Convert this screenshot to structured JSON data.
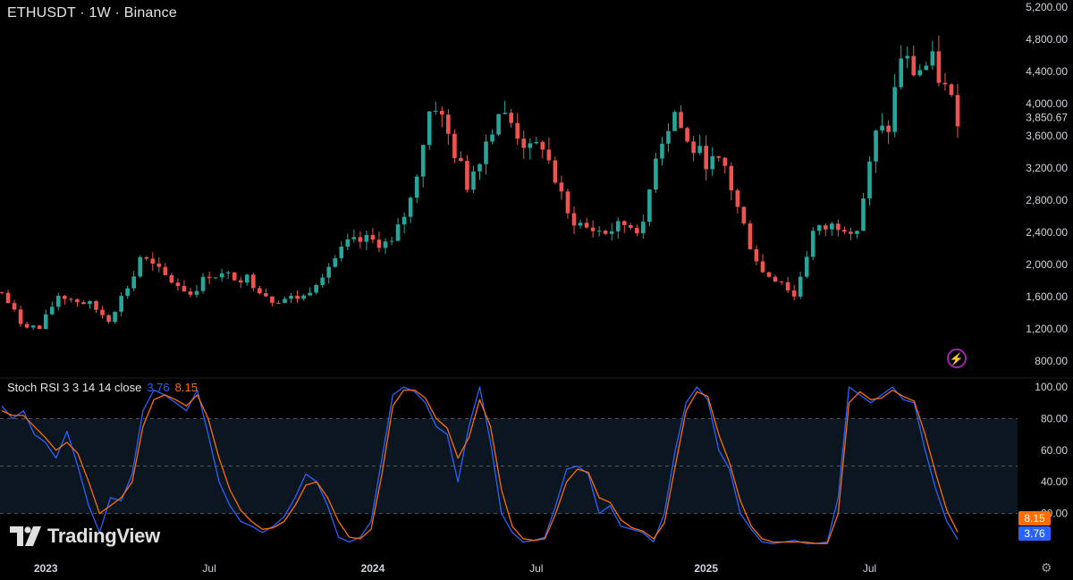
{
  "header": {
    "title": "ETHUSDT · 1W · Binance"
  },
  "indicator": {
    "label": "Stoch RSI 3 3 14 14 close",
    "k_value": "3.76",
    "d_value": "8.15"
  },
  "branding": {
    "logo_text": "TradingView"
  },
  "icons": {
    "alert": "lightning-icon",
    "settings": "gear-icon"
  },
  "colors": {
    "up": "#26a69a",
    "down": "#ef5350",
    "k_line": "#2962ff",
    "d_line": "#ff6d00",
    "band_fill": "#0b1620"
  },
  "chart_data": [
    {
      "type": "candlestick",
      "title": "ETHUSDT · 1W · Binance",
      "y_ticks": [
        "5,200.00",
        "4,800.00",
        "4,400.00",
        "4,000.00",
        "3,600.00",
        "3,200.00",
        "2,800.00",
        "2,400.00",
        "2,000.00",
        "1,600.00",
        "1,200.00",
        "800.00"
      ],
      "last_price_label": "3,850.67",
      "x_ticks": [
        "2023",
        "Jul",
        "2024",
        "Jul",
        "2025",
        "Jul"
      ],
      "close_path": [
        [
          "2022-11-14",
          1650
        ],
        [
          "2022-12-05",
          1280
        ],
        [
          "2022-12-26",
          1200
        ],
        [
          "2023-01-16",
          1620
        ],
        [
          "2023-02-06",
          1550
        ],
        [
          "2023-02-20",
          1500
        ],
        [
          "2023-03-13",
          1320
        ],
        [
          "2023-04-10",
          1860
        ],
        [
          "2023-04-17",
          2100
        ],
        [
          "2023-05-15",
          1850
        ],
        [
          "2023-06-12",
          1640
        ],
        [
          "2023-07-03",
          1880
        ],
        [
          "2023-08-14",
          1830
        ],
        [
          "2023-09-11",
          1560
        ],
        [
          "2023-10-16",
          1600
        ],
        [
          "2023-11-06",
          1900
        ],
        [
          "2023-12-04",
          2250
        ],
        [
          "2023-12-25",
          2300
        ],
        [
          "2024-01-22",
          2250
        ],
        [
          "2024-02-12",
          2800
        ],
        [
          "2024-03-04",
          3900
        ],
        [
          "2024-03-11",
          4000
        ],
        [
          "2024-03-25",
          3600
        ],
        [
          "2024-04-15",
          3000
        ],
        [
          "2024-05-20",
          3900
        ],
        [
          "2024-06-03",
          3750
        ],
        [
          "2024-06-24",
          3400
        ],
        [
          "2024-07-08",
          3500
        ],
        [
          "2024-08-05",
          2600
        ],
        [
          "2024-08-26",
          2450
        ],
        [
          "2024-09-16",
          2400
        ],
        [
          "2024-10-07",
          2500
        ],
        [
          "2024-10-28",
          2450
        ],
        [
          "2024-11-11",
          3400
        ],
        [
          "2024-12-02",
          3900
        ],
        [
          "2024-12-16",
          3500
        ],
        [
          "2025-01-06",
          3300
        ],
        [
          "2025-01-27",
          3200
        ],
        [
          "2025-02-10",
          2700
        ],
        [
          "2025-02-24",
          2250
        ],
        [
          "2025-03-10",
          1900
        ],
        [
          "2025-03-31",
          1800
        ],
        [
          "2025-04-14",
          1600
        ],
        [
          "2025-05-05",
          2400
        ],
        [
          "2025-06-02",
          2500
        ],
        [
          "2025-06-23",
          2450
        ],
        [
          "2025-07-14",
          3600
        ],
        [
          "2025-07-28",
          3700
        ],
        [
          "2025-08-11",
          4600
        ],
        [
          "2025-08-25",
          4400
        ],
        [
          "2025-09-15",
          4500
        ],
        [
          "2025-10-13",
          3850
        ]
      ]
    },
    {
      "type": "line",
      "title": "Stoch RSI 3 3 14 14 close",
      "y_ticks": [
        "100.00",
        "80.00",
        "60.00",
        "40.00",
        "20.00"
      ],
      "bands": [
        80,
        50,
        20
      ],
      "x_ticks": [
        "2023",
        "Jul",
        "2024",
        "Jul",
        "2025",
        "Jul"
      ],
      "series": [
        {
          "name": "K",
          "last": "3.76",
          "values": [
            88,
            80,
            85,
            70,
            65,
            55,
            72,
            50,
            25,
            8,
            30,
            28,
            45,
            85,
            98,
            95,
            90,
            85,
            98,
            70,
            40,
            25,
            15,
            12,
            8,
            12,
            18,
            30,
            45,
            40,
            25,
            5,
            2,
            5,
            15,
            55,
            95,
            100,
            97,
            90,
            75,
            70,
            40,
            75,
            100,
            65,
            20,
            8,
            2,
            3,
            5,
            25,
            48,
            50,
            45,
            20,
            25,
            12,
            10,
            8,
            2,
            20,
            60,
            90,
            100,
            92,
            60,
            48,
            20,
            10,
            2,
            1,
            2,
            3,
            1,
            1,
            2,
            30,
            100,
            95,
            90,
            95,
            100,
            92,
            90,
            60,
            35,
            15,
            3.76
          ]
        },
        {
          "name": "D",
          "last": "8.15",
          "values": [
            85,
            82,
            82,
            75,
            68,
            60,
            65,
            58,
            40,
            20,
            25,
            30,
            40,
            75,
            92,
            95,
            92,
            88,
            95,
            80,
            55,
            35,
            22,
            15,
            10,
            11,
            15,
            25,
            38,
            40,
            30,
            15,
            5,
            4,
            10,
            45,
            88,
            98,
            98,
            93,
            80,
            74,
            55,
            68,
            92,
            75,
            35,
            12,
            4,
            3,
            4,
            20,
            40,
            48,
            46,
            30,
            27,
            16,
            11,
            9,
            4,
            14,
            50,
            85,
            97,
            94,
            70,
            52,
            28,
            12,
            4,
            2,
            2,
            2,
            2,
            1,
            1,
            20,
            90,
            97,
            92,
            93,
            98,
            94,
            91,
            70,
            45,
            22,
            8.15
          ]
        }
      ]
    }
  ]
}
